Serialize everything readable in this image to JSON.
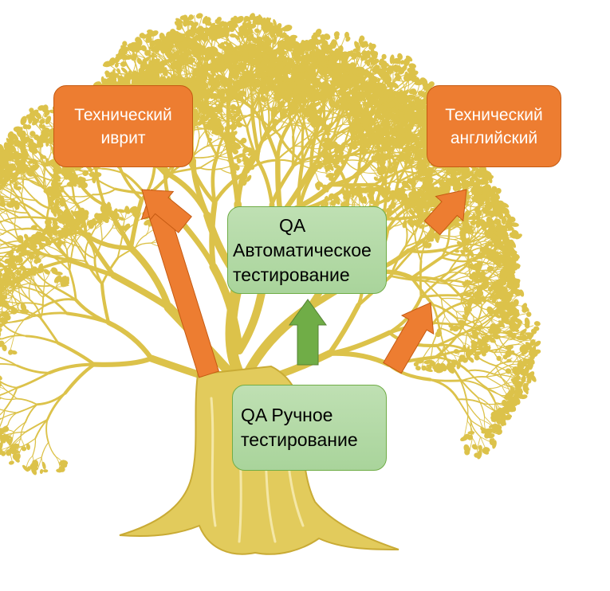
{
  "diagram": {
    "background": "#ffffff",
    "tree_color": "#dcc24a",
    "nodes": {
      "tech_hebrew": {
        "lines": [
          "Технический",
          "иврит"
        ],
        "fill": "#ed7d31"
      },
      "tech_english": {
        "lines": [
          "Технический",
          "английский"
        ],
        "fill": "#ed7d31"
      },
      "qa_auto": {
        "lines": [
          "QA",
          "Автоматическое",
          "тестирование"
        ],
        "fill": "#a9d49b"
      },
      "qa_manual": {
        "lines": [
          "QA Ручное",
          "тестирование"
        ],
        "fill": "#a9d49b"
      }
    },
    "arrows": [
      {
        "from": "qa_manual",
        "to": "tech_hebrew",
        "color": "#ed7d31"
      },
      {
        "from": "qa_manual",
        "to": "qa_auto",
        "color": "#70ad47"
      },
      {
        "from": "qa_manual",
        "to": "tech_english",
        "color": "#ed7d31"
      },
      {
        "from": "qa_auto",
        "to": "tech_hebrew",
        "color": "#ed7d31"
      },
      {
        "from": "qa_auto",
        "to": "tech_english",
        "color": "#ed7d31"
      }
    ]
  }
}
